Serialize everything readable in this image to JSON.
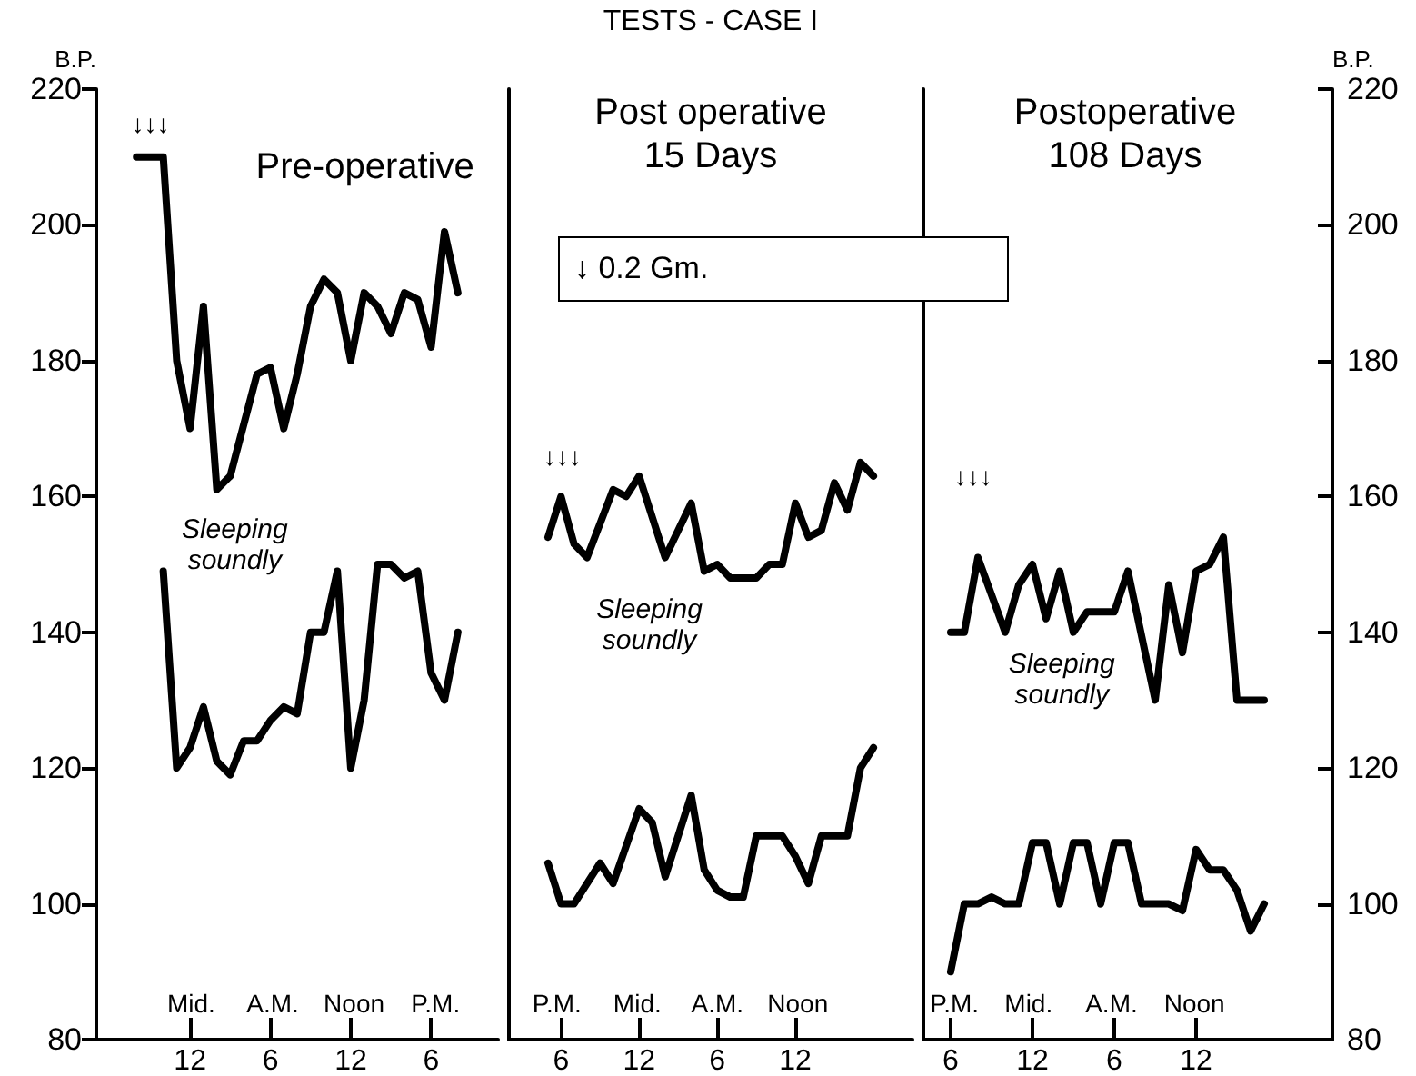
{
  "chart_data": [
    {
      "type": "line",
      "subtitle": "Pre-operative",
      "ylabel": "B.P.",
      "categories": [
        null,
        null,
        null,
        null,
        null,
        null,
        null,
        "12",
        null,
        null,
        null,
        null,
        null,
        "6",
        null,
        null,
        null,
        null,
        null,
        "12",
        null,
        null,
        null,
        null,
        null,
        "6",
        null,
        null,
        null,
        null,
        null
      ],
      "ylim": [
        80,
        220
      ],
      "yticks": [
        80,
        100,
        120,
        140,
        160,
        180,
        200,
        220
      ],
      "grid": false,
      "marker": "none",
      "line_style": "solid",
      "series": [
        {
          "color": "#000000",
          "values": [
            null,
            null,
            null,
            210,
            null,
            210,
            180,
            170,
            188,
            161,
            163,
            null,
            178,
            179,
            170,
            178,
            188,
            192,
            190,
            180,
            190,
            188,
            184,
            190,
            189,
            182,
            199,
            190,
            null,
            null,
            null
          ]
        },
        {
          "color": "#000000",
          "values": [
            null,
            null,
            null,
            null,
            null,
            149,
            120,
            123,
            129,
            121,
            119,
            124,
            124,
            127,
            129,
            128,
            140,
            140,
            149,
            120,
            130,
            150,
            150,
            148,
            149,
            134,
            130,
            140,
            null,
            null,
            null
          ]
        }
      ],
      "annotations": [
        "↓↓↓",
        "Sleeping\nsoundly",
        "Mid.",
        "A.M.",
        "Noon",
        "P.M."
      ]
    },
    {
      "type": "line",
      "title": "TESTS - CASE I",
      "subtitle": "Post operative\n15 Days",
      "categories": [
        null,
        null,
        null,
        null,
        "6",
        null,
        null,
        null,
        null,
        null,
        "12",
        null,
        null,
        null,
        null,
        null,
        "6",
        null,
        null,
        null,
        null,
        null,
        "12",
        null,
        null,
        null,
        null,
        null,
        null,
        null,
        null,
        null
      ],
      "ylim": [
        80,
        220
      ],
      "tick_labels": "x",
      "grid": false,
      "marker": "none",
      "line_style": "solid",
      "series": [
        {
          "color": "#000000",
          "values": [
            null,
            null,
            null,
            154,
            160,
            153,
            151,
            null,
            161,
            160,
            163,
            null,
            151,
            null,
            159,
            149,
            150,
            148,
            null,
            148,
            150,
            150,
            159,
            154,
            155,
            162,
            158,
            165,
            163,
            null,
            null,
            null
          ]
        },
        {
          "color": "#000000",
          "values": [
            null,
            null,
            null,
            106,
            100,
            100,
            null,
            106,
            103,
            null,
            114,
            112,
            104,
            null,
            116,
            105,
            102,
            101,
            101,
            110,
            null,
            110,
            107,
            103,
            110,
            null,
            110,
            120,
            123,
            null,
            null,
            null
          ]
        }
      ],
      "annotations": [
        "↓ 0.2 Gm.",
        "↓↓↓",
        "Sleeping\nsoundly",
        "P.M.",
        "Mid.",
        "A.M.",
        "Noon"
      ]
    },
    {
      "type": "line",
      "subtitle": "Postoperative\n108 Days",
      "y2label": "B.P.",
      "categories": [
        null,
        null,
        "6",
        null,
        null,
        null,
        null,
        null,
        "12",
        null,
        null,
        null,
        null,
        null,
        "6",
        null,
        null,
        null,
        null,
        null,
        "12",
        null,
        null,
        null,
        null,
        null,
        null,
        null,
        null,
        null,
        null
      ],
      "y2lim": [
        80,
        220
      ],
      "y2ticks": [
        80,
        100,
        120,
        140,
        160,
        180,
        200,
        220
      ],
      "grid": false,
      "marker": "none",
      "line_style": "solid",
      "series": [
        {
          "color": "#000000",
          "axis": "y2",
          "values": [
            null,
            null,
            140,
            140,
            151,
            null,
            140,
            147,
            150,
            142,
            149,
            140,
            143,
            null,
            143,
            149,
            null,
            130,
            147,
            137,
            149,
            150,
            154,
            130,
            null,
            130,
            null,
            null,
            null,
            null,
            null
          ]
        },
        {
          "color": "#000000",
          "axis": "y2",
          "values": [
            null,
            null,
            90,
            100,
            100,
            101,
            100,
            100,
            109,
            109,
            100,
            109,
            109,
            100,
            109,
            109,
            100,
            null,
            100,
            99,
            108,
            105,
            105,
            102,
            96,
            100,
            null,
            null,
            null,
            null,
            null
          ]
        }
      ],
      "annotations": [
        "↓↓↓",
        "Sleeping\nsoundly",
        "P.M.",
        "Mid.",
        "A.M.",
        "Noon"
      ]
    }
  ]
}
